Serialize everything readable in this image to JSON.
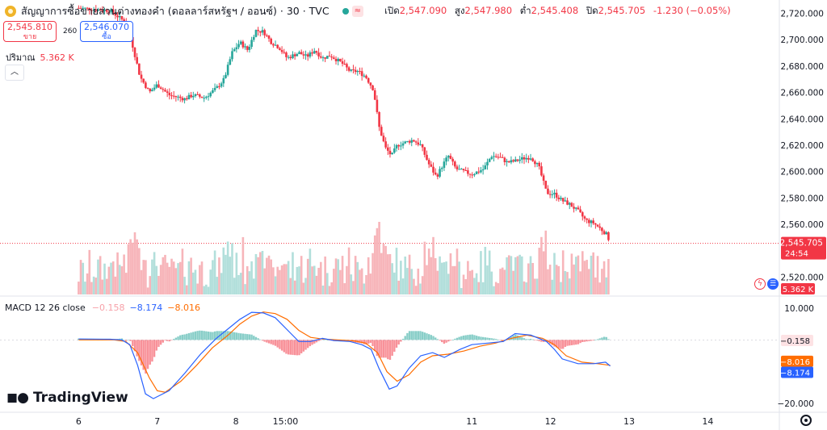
{
  "header": {
    "title": "สัญญาการซื้อขายส่วนต่างทองคำ (ดอลลาร์สหรัฐฯ / ออนซ์) · 30 · TVC",
    "ohlc": {
      "open_label": "เปิด",
      "open": "2,547.090",
      "high_label": "สูง",
      "high": "2,547.980",
      "low_label": "ต่ำ",
      "low": "2,545.408",
      "close_label": "ปิด",
      "close": "2,545.705",
      "change": "-1.230 (−0.05%)"
    }
  },
  "trade": {
    "sell_price": "2,545.810",
    "sell_label": "ขาย",
    "spread": "260",
    "buy_price": "2,546.070",
    "buy_label": "ซื้อ"
  },
  "volume_indicator": {
    "label": "ปริมาณ",
    "value": "5.362 K"
  },
  "macd_indicator": {
    "label": "MACD 12 26 close",
    "hist": "−0.158",
    "macd": "−8.174",
    "signal": "−8.016"
  },
  "branding": {
    "logo_text": "TradingView"
  },
  "colors": {
    "up": "#26a69a",
    "down": "#f23645",
    "macd_line": "#2962ff",
    "signal_line": "#ff6d00"
  },
  "chart_data": [
    {
      "type": "candlestick",
      "title": "",
      "timeframe": "30",
      "ylim": [
        2510,
        2730
      ],
      "y_ticks": [
        2720,
        2700,
        2680,
        2660,
        2640,
        2620,
        2600,
        2580,
        2560,
        2520
      ],
      "y_tick_labels": [
        "2,720.000",
        "2,700.000",
        "2,680.000",
        "2,660.000",
        "2,640.000",
        "2,620.000",
        "2,600.000",
        "2,580.000",
        "2,560.000",
        "2,520.000"
      ],
      "x_tick_labels": [
        "6",
        "7",
        "8",
        "15:00",
        "11",
        "12",
        "13",
        "14"
      ],
      "x_tick_positions": [
        6,
        7,
        8,
        8.63,
        11,
        12,
        13,
        14
      ],
      "last_price_label": "2,545.705",
      "countdown_label": "24:54",
      "volume_last_label": "5.362 K",
      "close_path": [
        [
          6.0,
          2724
        ],
        [
          6.4,
          2722
        ],
        [
          6.62,
          2712
        ],
        [
          6.78,
          2672
        ],
        [
          6.9,
          2660
        ],
        [
          7.0,
          2666
        ],
        [
          7.15,
          2658
        ],
        [
          7.35,
          2655
        ],
        [
          7.45,
          2658
        ],
        [
          7.6,
          2656
        ],
        [
          7.75,
          2663
        ],
        [
          7.85,
          2670
        ],
        [
          7.95,
          2690
        ],
        [
          8.05,
          2698
        ],
        [
          8.15,
          2692
        ],
        [
          8.25,
          2707
        ],
        [
          8.35,
          2706
        ],
        [
          8.45,
          2698
        ],
        [
          8.55,
          2694
        ],
        [
          8.65,
          2686
        ],
        [
          8.8,
          2690
        ],
        [
          8.9,
          2687
        ],
        [
          9.0,
          2692
        ],
        [
          9.1,
          2686
        ],
        [
          9.2,
          2688
        ],
        [
          9.35,
          2682
        ],
        [
          9.45,
          2676
        ],
        [
          9.55,
          2676
        ],
        [
          9.65,
          2672
        ],
        [
          9.75,
          2662
        ],
        [
          9.82,
          2634
        ],
        [
          9.9,
          2618
        ],
        [
          9.98,
          2612
        ],
        [
          10.05,
          2620
        ],
        [
          10.15,
          2622
        ],
        [
          10.25,
          2624
        ],
        [
          10.35,
          2620
        ],
        [
          10.45,
          2606
        ],
        [
          10.55,
          2596
        ],
        [
          10.62,
          2604
        ],
        [
          10.7,
          2612
        ],
        [
          10.8,
          2602
        ],
        [
          10.9,
          2600
        ],
        [
          11.0,
          2598
        ],
        [
          11.15,
          2602
        ],
        [
          11.25,
          2612
        ],
        [
          11.35,
          2611
        ],
        [
          11.45,
          2607
        ],
        [
          11.55,
          2608
        ],
        [
          11.65,
          2610
        ],
        [
          11.75,
          2611
        ],
        [
          11.85,
          2604
        ],
        [
          11.95,
          2584
        ],
        [
          12.05,
          2583
        ],
        [
          12.15,
          2578
        ],
        [
          12.25,
          2575
        ],
        [
          12.35,
          2570
        ],
        [
          12.45,
          2563
        ],
        [
          12.55,
          2561
        ],
        [
          12.65,
          2556
        ],
        [
          12.72,
          2552
        ],
        [
          12.76,
          2546
        ]
      ]
    },
    {
      "type": "bar",
      "title": "",
      "name": "ปริมาณ",
      "last_value_label": "5.362 K"
    },
    {
      "type": "line",
      "title": "",
      "ylim": [
        -20,
        10
      ],
      "y_ticks": [
        10,
        -20
      ],
      "y_tick_labels": [
        "10.000",
        "−20.000"
      ],
      "series": [
        {
          "name": "MACD",
          "last_label": "−8.174",
          "points": [
            [
              6.0,
              0.3
            ],
            [
              6.4,
              0.2
            ],
            [
              6.55,
              0.0
            ],
            [
              6.65,
              -1.5
            ],
            [
              6.75,
              -8.0
            ],
            [
              6.85,
              -17.0
            ],
            [
              6.95,
              -18.5
            ],
            [
              7.15,
              -16.0
            ],
            [
              7.35,
              -10.5
            ],
            [
              7.55,
              -4.5
            ],
            [
              7.75,
              0.5
            ],
            [
              7.9,
              3.5
            ],
            [
              8.05,
              6.5
            ],
            [
              8.2,
              8.7
            ],
            [
              8.35,
              8.5
            ],
            [
              8.5,
              7.0
            ],
            [
              8.6,
              4.5
            ],
            [
              8.7,
              2.0
            ],
            [
              8.8,
              -0.5
            ],
            [
              8.95,
              -0.5
            ],
            [
              9.1,
              0.5
            ],
            [
              9.25,
              -0.2
            ],
            [
              9.45,
              -0.5
            ],
            [
              9.6,
              -1.5
            ],
            [
              9.72,
              -3.0
            ],
            [
              9.82,
              -9.0
            ],
            [
              9.95,
              -15.5
            ],
            [
              10.05,
              -14.5
            ],
            [
              10.2,
              -9.0
            ],
            [
              10.35,
              -5.0
            ],
            [
              10.5,
              -4.0
            ],
            [
              10.65,
              -5.5
            ],
            [
              10.85,
              -3.0
            ],
            [
              11.0,
              -1.5
            ],
            [
              11.2,
              -1.0
            ],
            [
              11.4,
              -0.5
            ],
            [
              11.55,
              2.0
            ],
            [
              11.75,
              1.5
            ],
            [
              11.95,
              -0.5
            ],
            [
              12.05,
              -3.0
            ],
            [
              12.15,
              -6.0
            ],
            [
              12.35,
              -7.5
            ],
            [
              12.55,
              -7.5
            ],
            [
              12.7,
              -7.0
            ],
            [
              12.76,
              -8.2
            ]
          ]
        },
        {
          "name": "Signal",
          "last_label": "−8.016",
          "points": [
            [
              6.0,
              0.0
            ],
            [
              6.45,
              0.0
            ],
            [
              6.6,
              -0.5
            ],
            [
              6.75,
              -4.0
            ],
            [
              6.9,
              -12.0
            ],
            [
              7.0,
              -16.0
            ],
            [
              7.1,
              -16.5
            ],
            [
              7.3,
              -13.0
            ],
            [
              7.5,
              -8.0
            ],
            [
              7.7,
              -2.5
            ],
            [
              7.9,
              1.5
            ],
            [
              8.05,
              5.0
            ],
            [
              8.2,
              7.5
            ],
            [
              8.35,
              8.8
            ],
            [
              8.5,
              8.3
            ],
            [
              8.65,
              6.5
            ],
            [
              8.8,
              3.0
            ],
            [
              8.95,
              0.8
            ],
            [
              9.1,
              0.3
            ],
            [
              9.3,
              0.0
            ],
            [
              9.5,
              -0.3
            ],
            [
              9.65,
              -1.0
            ],
            [
              9.8,
              -4.0
            ],
            [
              9.92,
              -10.0
            ],
            [
              10.05,
              -13.0
            ],
            [
              10.2,
              -11.0
            ],
            [
              10.35,
              -7.0
            ],
            [
              10.5,
              -5.0
            ],
            [
              10.7,
              -4.5
            ],
            [
              10.9,
              -3.5
            ],
            [
              11.1,
              -2.0
            ],
            [
              11.3,
              -1.0
            ],
            [
              11.5,
              0.5
            ],
            [
              11.7,
              1.5
            ],
            [
              11.9,
              0.5
            ],
            [
              12.05,
              -1.5
            ],
            [
              12.2,
              -5.0
            ],
            [
              12.4,
              -7.0
            ],
            [
              12.6,
              -7.5
            ],
            [
              12.76,
              -8.0
            ]
          ]
        }
      ]
    }
  ]
}
